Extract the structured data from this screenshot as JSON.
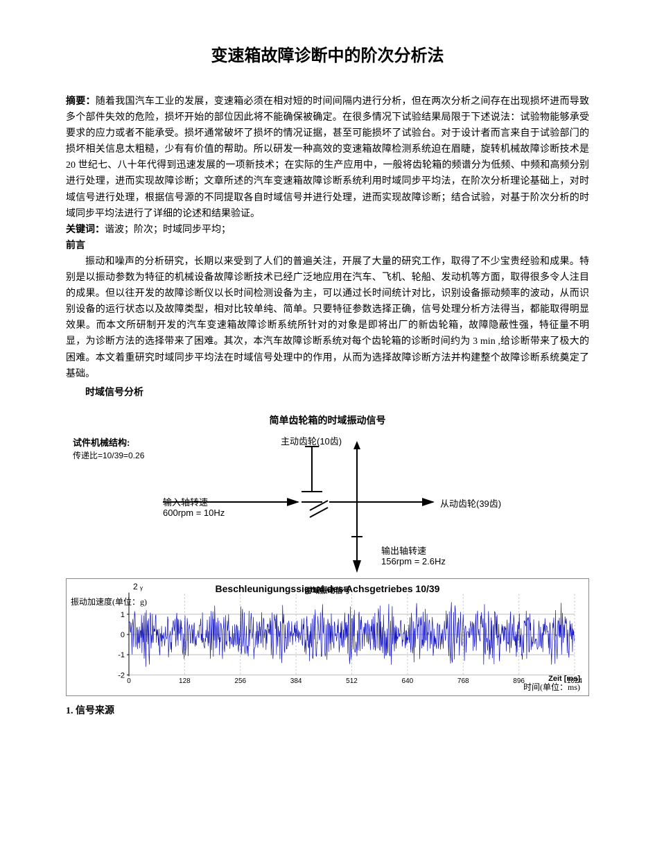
{
  "title": "变速箱故障诊断中的阶次分析法",
  "abstract": {
    "label": "摘要：",
    "text": "随着我国汽车工业的发展，变速箱必须在相对短的时间间隔内进行分析，但在两次分析之间存在出现损坏进而导致多个部件失效的危险，损坏开始的部位因此将不能确保被确定。在很多情况下试验结果局限于下述说法：试验物能够承受要求的应力或者不能承受。损坏通常破坏了损坏的情况证据，甚至可能损坏了试验台。对于设计者而言来自于试验部门的损坏相关信息太粗糙，少有有价值的帮助。所以研发一种高效的变速箱故障检测系统迫在眉睫，旋转机械故障诊断技术是20 世纪七、八十年代得到迅速发展的一项新技术；在实际的生产应用中，一般将齿轮箱的频谱分为低频、中频和高频分别进行处理，进而实现故障诊断；文章所述的汽车变速箱故障诊断系统利用时域同步平均法，在阶次分析理论基础上，对时域信号进行处理，根据信号源的不同提取各自时域信号并进行处理，进而实现故障诊断；结合试验，对基于阶次分析的时域同步平均法进行了详细的论述和结果验证。"
  },
  "keywords": {
    "label": "关键词：",
    "text": "谐波；阶次；时域同步平均；"
  },
  "preface": {
    "label": "前言",
    "text": "振动和噪声的分析研究，长期以来受到了人们的普遍关注，开展了大量的研究工作，取得了不少宝贵经验和成果。特别是以振动参数为特征的机械设备故障诊断技术已经广泛地应用在汽车、飞机、轮船、发动机等方面，取得很多令人注目的成果。但以往开发的故障诊断仪以长时间检测设备为主，可以通过长时间统计对比，识别设备振动频率的波动，从而识别设备的运行状态以及故障类型，相对比较单纯、简单。只要特征参数选择正确，信号处理分析方法得当，都能取得明显效果。而本文所研制开发的汽车变速箱故障诊断系统所针对的对象是即将出厂的新齿轮箱，故障隐蔽性强，特征量不明显，为诊断方法的选择带来了困难。其次，本汽车故障诊断系统对每个齿轮箱的诊断时间约为 3 min ,给诊断带来了极大的困难。本文着重研究时域同步平均法在时域信号处理中的作用，从而为选择故障诊断方法并构建整个故障诊断系统奠定了基础。"
  },
  "section1": "时域信号分析",
  "figure": {
    "title": "简单齿轮箱的时域振动信号",
    "spec_title": "试件机械结构:",
    "spec_ratio": "传递比=10/39=0.26",
    "drive_gear": "主动齿轮(10齿)",
    "driven_gear": "从动齿轮(39齿)",
    "input_speed_l1": "输入轴转速",
    "input_speed_l2": "600rpm = 10Hz",
    "output_speed_l1": "输出轴转速",
    "output_speed_l2": "156rpm = 2.6Hz"
  },
  "chart": {
    "title_de": "Beschleunigungssignal des Achsgetriebes 10/39",
    "title_cn": "时域振动信号",
    "ylabel_cn": "振动加速度(单位：g)",
    "xlabel_de": "Zeit [ms]",
    "xlabel_cn": "时间(单位：ms)",
    "two_label": "2 ᵧ",
    "yticks": [
      "1",
      "0",
      "-1",
      "-2"
    ],
    "xticks": [
      "0",
      "128",
      "256",
      "384",
      "512",
      "640",
      "768",
      "896",
      "1024"
    ],
    "signal_color": "#1515c0",
    "grid_color": "#bdbdbd",
    "background": "#ffffff",
    "ylim": [
      -2,
      2
    ],
    "xlim": [
      0,
      1024
    ],
    "amplitude": 1.4,
    "samples": 1024
  },
  "footer_heading": "1. 信号来源"
}
